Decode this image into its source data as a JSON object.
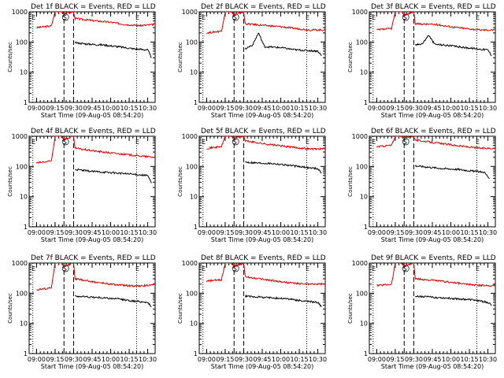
{
  "chart_data": [
    {
      "type": "line",
      "title": "Det 1f BLACK = Events, RED = LLD",
      "ylabel": "Counts/sec",
      "xlabel": "Start Time (09-Aug-05 08:54:20)",
      "yscale": "log",
      "ylim": [
        1,
        1000
      ],
      "yticks": [
        1,
        10,
        100,
        1000
      ],
      "xticks": [
        "09:00",
        "09:15",
        "09:30",
        "09:45",
        "10:00",
        "10:15",
        "10:30"
      ],
      "xlim": [
        -0.1,
        1.6
      ],
      "marker_labels": [
        "E",
        "S",
        "E"
      ],
      "dash_lines": [
        -0.05,
        0.37,
        0.5,
        1.35
      ],
      "series": [
        {
          "name": "LLD",
          "color": "#dd0000",
          "values": [
            [
              0,
              300
            ],
            [
              0.2,
              340
            ],
            [
              0.25,
              1000
            ],
            [
              0.33,
              1000
            ],
            [
              0.38,
              900
            ],
            [
              0.5,
              1000
            ],
            [
              0.52,
              600
            ],
            [
              0.8,
              500
            ],
            [
              1.0,
              450
            ],
            [
              1.2,
              380
            ],
            [
              1.4,
              350
            ],
            [
              1.6,
              380
            ]
          ]
        },
        {
          "name": "Events",
          "color": "#000000",
          "values": [
            [
              0.52,
              95
            ],
            [
              0.7,
              85
            ],
            [
              0.9,
              80
            ],
            [
              1.1,
              70
            ],
            [
              1.3,
              60
            ],
            [
              1.5,
              55
            ],
            [
              1.55,
              30
            ]
          ]
        }
      ]
    },
    {
      "type": "line",
      "title": "Det 2f BLACK = Events, RED = LLD",
      "ylabel": "Counts/sec",
      "xlabel": "Start Time (09-Aug-05 08:54:20)",
      "yscale": "log",
      "ylim": [
        1,
        1000
      ],
      "yticks": [
        1,
        10,
        100,
        1000
      ],
      "xticks": [
        "09:00",
        "09:15",
        "09:30",
        "09:45",
        "10:00",
        "10:15",
        "10:30"
      ],
      "xlim": [
        -0.1,
        1.6
      ],
      "marker_labels": [
        "E",
        "S",
        "E"
      ],
      "dash_lines": [
        -0.05,
        0.37,
        0.5,
        1.35
      ],
      "series": [
        {
          "name": "LLD",
          "color": "#dd0000",
          "values": [
            [
              0,
              200
            ],
            [
              0.2,
              230
            ],
            [
              0.25,
              1000
            ],
            [
              0.33,
              1000
            ],
            [
              0.38,
              800
            ],
            [
              0.5,
              1000
            ],
            [
              0.52,
              400
            ],
            [
              0.8,
              350
            ],
            [
              1.0,
              320
            ],
            [
              1.2,
              280
            ],
            [
              1.4,
              250
            ],
            [
              1.6,
              250
            ]
          ]
        },
        {
          "name": "Events",
          "color": "#000000",
          "values": [
            [
              0.52,
              60
            ],
            [
              0.62,
              80
            ],
            [
              0.7,
              200
            ],
            [
              0.78,
              70
            ],
            [
              1.0,
              65
            ],
            [
              1.2,
              55
            ],
            [
              1.5,
              50
            ],
            [
              1.55,
              35
            ]
          ]
        }
      ]
    },
    {
      "type": "line",
      "title": "Det 3f BLACK = Events, RED = LLD",
      "ylabel": "Counts/sec",
      "xlabel": "Start Time (09-Aug-05 08:54:20)",
      "yscale": "log",
      "ylim": [
        1,
        1000
      ],
      "yticks": [
        1,
        10,
        100,
        1000
      ],
      "xticks": [
        "09:00",
        "09:15",
        "09:30",
        "09:45",
        "10:00",
        "10:15",
        "10:30"
      ],
      "xlim": [
        -0.1,
        1.6
      ],
      "marker_labels": [
        "E",
        "S",
        "E"
      ],
      "dash_lines": [
        -0.05,
        0.37,
        0.5,
        1.35
      ],
      "series": [
        {
          "name": "LLD",
          "color": "#dd0000",
          "values": [
            [
              0,
              250
            ],
            [
              0.2,
              280
            ],
            [
              0.25,
              1000
            ],
            [
              0.33,
              1000
            ],
            [
              0.38,
              800
            ],
            [
              0.5,
              1000
            ],
            [
              0.52,
              400
            ],
            [
              0.8,
              380
            ],
            [
              1.0,
              320
            ],
            [
              1.2,
              280
            ],
            [
              1.4,
              250
            ],
            [
              1.6,
              250
            ]
          ]
        },
        {
          "name": "Events",
          "color": "#000000",
          "values": [
            [
              0.52,
              80
            ],
            [
              0.62,
              90
            ],
            [
              0.7,
              170
            ],
            [
              0.78,
              85
            ],
            [
              1.0,
              75
            ],
            [
              1.2,
              65
            ],
            [
              1.5,
              55
            ],
            [
              1.55,
              35
            ]
          ]
        }
      ]
    },
    {
      "type": "line",
      "title": "Det 4f BLACK = Events, RED = LLD",
      "ylabel": "Counts/sec",
      "xlabel": "Start Time (09-Aug-05 08:54:20)",
      "yscale": "log",
      "ylim": [
        1,
        1000
      ],
      "yticks": [
        1,
        10,
        100,
        1000
      ],
      "xticks": [
        "09:00",
        "09:15",
        "09:30",
        "09:45",
        "10:00",
        "10:15",
        "10:30"
      ],
      "xlim": [
        -0.1,
        1.6
      ],
      "marker_labels": [
        "E",
        "S",
        "E"
      ],
      "dash_lines": [
        -0.05,
        0.37,
        0.5,
        1.35
      ],
      "series": [
        {
          "name": "LLD",
          "color": "#dd0000",
          "values": [
            [
              0,
              130
            ],
            [
              0.2,
              150
            ],
            [
              0.25,
              1000
            ],
            [
              0.33,
              1000
            ],
            [
              0.38,
              800
            ],
            [
              0.5,
              1000
            ],
            [
              0.52,
              400
            ],
            [
              0.8,
              320
            ],
            [
              1.0,
              280
            ],
            [
              1.2,
              250
            ],
            [
              1.4,
              220
            ],
            [
              1.6,
              200
            ]
          ]
        },
        {
          "name": "Events",
          "color": "#000000",
          "values": [
            [
              0.52,
              80
            ],
            [
              0.7,
              70
            ],
            [
              0.9,
              65
            ],
            [
              1.1,
              60
            ],
            [
              1.3,
              55
            ],
            [
              1.5,
              50
            ],
            [
              1.55,
              28
            ]
          ]
        }
      ]
    },
    {
      "type": "line",
      "title": "Det 5f BLACK = Events, RED = LLD",
      "ylabel": "Counts/sec",
      "xlabel": "Start Time (09-Aug-05 08:54:20)",
      "yscale": "log",
      "ylim": [
        1,
        1000
      ],
      "yticks": [
        1,
        10,
        100,
        1000
      ],
      "xticks": [
        "09:00",
        "09:15",
        "09:30",
        "09:45",
        "10:00",
        "10:15",
        "10:30"
      ],
      "xlim": [
        -0.1,
        1.6
      ],
      "marker_labels": [
        "E",
        "S",
        "E"
      ],
      "dash_lines": [
        -0.05,
        0.37,
        0.5,
        1.35
      ],
      "series": [
        {
          "name": "LLD",
          "color": "#dd0000",
          "values": [
            [
              0,
              400
            ],
            [
              0.2,
              450
            ],
            [
              0.25,
              1000
            ],
            [
              0.33,
              1000
            ],
            [
              0.38,
              900
            ],
            [
              0.5,
              1000
            ],
            [
              0.52,
              700
            ],
            [
              0.8,
              550
            ],
            [
              1.0,
              480
            ],
            [
              1.2,
              420
            ],
            [
              1.4,
              380
            ],
            [
              1.6,
              380
            ]
          ]
        },
        {
          "name": "Events",
          "color": "#000000",
          "values": [
            [
              0.52,
              140
            ],
            [
              0.7,
              130
            ],
            [
              0.9,
              125
            ],
            [
              1.1,
              110
            ],
            [
              1.3,
              95
            ],
            [
              1.5,
              85
            ],
            [
              1.55,
              60
            ]
          ]
        }
      ]
    },
    {
      "type": "line",
      "title": "Det 6f BLACK = Events, RED = LLD",
      "ylabel": "Counts/sec",
      "xlabel": "Start Time (09-Aug-05 08:54:20)",
      "yscale": "log",
      "ylim": [
        1,
        1000
      ],
      "yticks": [
        1,
        10,
        100,
        1000
      ],
      "xticks": [
        "09:00",
        "09:15",
        "09:30",
        "09:45",
        "10:00",
        "10:15",
        "10:30"
      ],
      "xlim": [
        -0.1,
        1.6
      ],
      "marker_labels": [
        "E",
        "S",
        "E"
      ],
      "dash_lines": [
        -0.05,
        0.37,
        0.5,
        1.35
      ],
      "series": [
        {
          "name": "LLD",
          "color": "#dd0000",
          "values": [
            [
              0,
              450
            ],
            [
              0.2,
              500
            ],
            [
              0.25,
              1000
            ],
            [
              0.33,
              1000
            ],
            [
              0.38,
              900
            ],
            [
              0.5,
              1000
            ],
            [
              0.52,
              750
            ],
            [
              0.8,
              600
            ],
            [
              1.0,
              520
            ],
            [
              1.2,
              450
            ],
            [
              1.4,
              400
            ],
            [
              1.6,
              400
            ]
          ]
        },
        {
          "name": "Events",
          "color": "#000000",
          "values": [
            [
              0.52,
              105
            ],
            [
              0.7,
              95
            ],
            [
              0.9,
              85
            ],
            [
              1.1,
              80
            ],
            [
              1.3,
              70
            ],
            [
              1.45,
              65
            ],
            [
              1.52,
              40
            ]
          ]
        }
      ]
    },
    {
      "type": "line",
      "title": "Det 7f BLACK = Events, RED = LLD",
      "ylabel": "Counts/sec",
      "xlabel": "Start Time (09-Aug-05 08:54:20)",
      "yscale": "log",
      "ylim": [
        1,
        1000
      ],
      "yticks": [
        1,
        10,
        100,
        1000
      ],
      "xticks": [
        "09:00",
        "09:15",
        "09:30",
        "09:45",
        "10:00",
        "10:15",
        "10:30"
      ],
      "xlim": [
        -0.1,
        1.6
      ],
      "marker_labels": [
        "E",
        "S",
        "E"
      ],
      "dash_lines": [
        -0.05,
        0.37,
        0.5,
        1.35
      ],
      "series": [
        {
          "name": "LLD",
          "color": "#dd0000",
          "values": [
            [
              0,
              130
            ],
            [
              0.2,
              150
            ],
            [
              0.25,
              1000
            ],
            [
              0.33,
              1000
            ],
            [
              0.38,
              800
            ],
            [
              0.5,
              1000
            ],
            [
              0.52,
              300
            ],
            [
              0.8,
              230
            ],
            [
              1.0,
              200
            ],
            [
              1.2,
              180
            ],
            [
              1.4,
              170
            ],
            [
              1.6,
              200
            ]
          ]
        },
        {
          "name": "Events",
          "color": "#000000",
          "values": [
            [
              0.52,
              80
            ],
            [
              0.7,
              75
            ],
            [
              0.9,
              70
            ],
            [
              1.1,
              65
            ],
            [
              1.3,
              55
            ],
            [
              1.5,
              50
            ],
            [
              1.55,
              35
            ]
          ]
        }
      ]
    },
    {
      "type": "line",
      "title": "Det 8f BLACK = Events, RED = LLD",
      "ylabel": "Counts/sec",
      "xlabel": "Start Time (09-Aug-05 08:54:20)",
      "yscale": "log",
      "ylim": [
        1,
        1000
      ],
      "yticks": [
        1,
        10,
        100,
        1000
      ],
      "xticks": [
        "09:00",
        "09:15",
        "09:30",
        "09:45",
        "10:00",
        "10:15",
        "10:30"
      ],
      "xlim": [
        -0.1,
        1.6
      ],
      "marker_labels": [
        "E",
        "S",
        "E"
      ],
      "dash_lines": [
        -0.05,
        0.37,
        0.5,
        1.35
      ],
      "series": [
        {
          "name": "LLD",
          "color": "#dd0000",
          "values": [
            [
              0,
              250
            ],
            [
              0.2,
              280
            ],
            [
              0.25,
              1000
            ],
            [
              0.33,
              1000
            ],
            [
              0.38,
              800
            ],
            [
              0.5,
              1000
            ],
            [
              0.52,
              350
            ],
            [
              0.8,
              280
            ],
            [
              1.0,
              240
            ],
            [
              1.2,
              210
            ],
            [
              1.4,
              200
            ],
            [
              1.6,
              200
            ]
          ]
        },
        {
          "name": "Events",
          "color": "#000000",
          "values": [
            [
              0.52,
              80
            ],
            [
              0.7,
              75
            ],
            [
              0.9,
              70
            ],
            [
              1.1,
              65
            ],
            [
              1.3,
              55
            ],
            [
              1.5,
              50
            ],
            [
              1.55,
              35
            ]
          ]
        }
      ]
    },
    {
      "type": "line",
      "title": "Det 9f BLACK = Events, RED = LLD",
      "ylabel": "Counts/sec",
      "xlabel": "Start Time (09-Aug-05 08:54:20)",
      "yscale": "log",
      "ylim": [
        1,
        1000
      ],
      "yticks": [
        1,
        10,
        100,
        1000
      ],
      "xticks": [
        "09:00",
        "09:15",
        "09:30",
        "09:45",
        "10:00",
        "10:15",
        "10:30"
      ],
      "xlim": [
        -0.1,
        1.6
      ],
      "marker_labels": [
        "E",
        "S",
        "E"
      ],
      "dash_lines": [
        -0.05,
        0.37,
        0.5,
        1.35
      ],
      "series": [
        {
          "name": "LLD",
          "color": "#dd0000",
          "values": [
            [
              0,
              180
            ],
            [
              0.2,
              200
            ],
            [
              0.25,
              1000
            ],
            [
              0.33,
              1000
            ],
            [
              0.38,
              800
            ],
            [
              0.5,
              1000
            ],
            [
              0.52,
              300
            ],
            [
              0.8,
              260
            ],
            [
              1.0,
              230
            ],
            [
              1.2,
              200
            ],
            [
              1.4,
              180
            ],
            [
              1.6,
              180
            ]
          ]
        },
        {
          "name": "Events",
          "color": "#000000",
          "values": [
            [
              0.52,
              80
            ],
            [
              0.7,
              75
            ],
            [
              0.9,
              70
            ],
            [
              1.1,
              65
            ],
            [
              1.3,
              60
            ],
            [
              1.5,
              50
            ],
            [
              1.55,
              40
            ]
          ]
        }
      ]
    }
  ]
}
